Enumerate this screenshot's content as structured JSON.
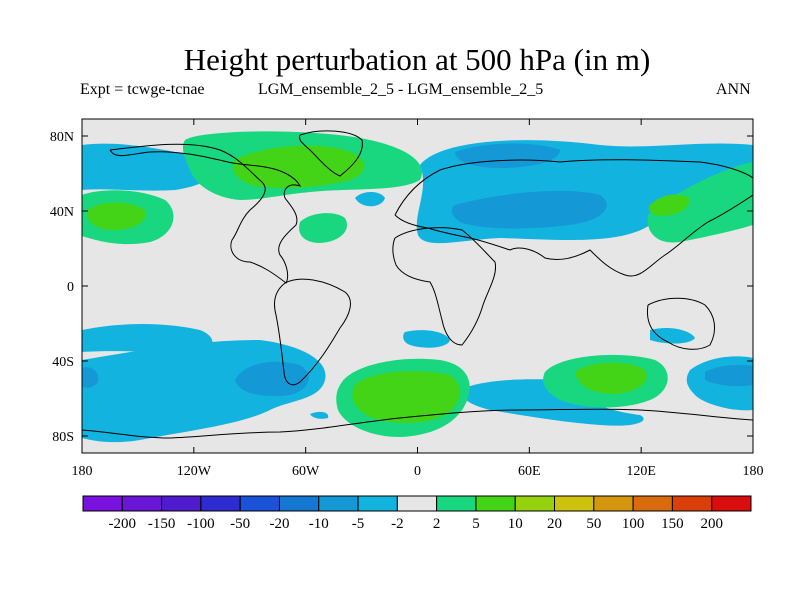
{
  "title": "Height perturbation at 500 hPa (in m)",
  "left_subtitle": "Expt = tcwge-tcnae",
  "center_subtitle": "LGM_ensemble_2_5 - LGM_ensemble_2_5",
  "right_subtitle": "ANN",
  "lat_ticks": [
    "80N",
    "40N",
    "0",
    "40S",
    "80S"
  ],
  "lon_ticks": [
    "180",
    "120W",
    "60W",
    "0",
    "60E",
    "120E",
    "180"
  ],
  "colorbar": {
    "labels": [
      "-200",
      "-150",
      "-100",
      "-50",
      "-20",
      "-10",
      "-5",
      "-2",
      "2",
      "5",
      "10",
      "20",
      "50",
      "100",
      "150",
      "200"
    ],
    "colors": [
      "#7a12df",
      "#6a16d6",
      "#4f1bcd",
      "#2e2bd0",
      "#1a52d8",
      "#1478d2",
      "#1598d6",
      "#13b3e0",
      "#e6e6e6",
      "#18d77f",
      "#43d418",
      "#95d10f",
      "#cfc20f",
      "#d4960e",
      "#d96a0d",
      "#da3f0a",
      "#d90d0d"
    ]
  },
  "colors": {
    "neutral": "#e6e6e6",
    "neg_weak": "#13b3e0",
    "neg_mid": "#1598d6",
    "pos_weak": "#18d77f",
    "pos_mid": "#43d418"
  }
}
